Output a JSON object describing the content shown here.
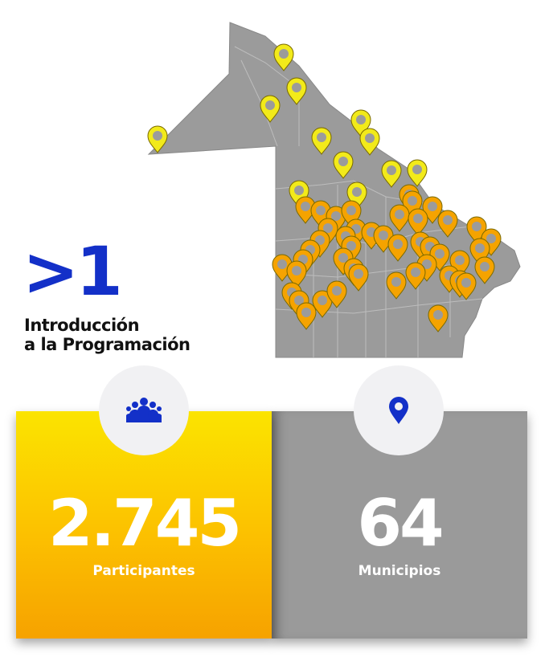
{
  "brand": {
    "mark": ">1"
  },
  "course": {
    "line1": "Introducción",
    "line2": "a la Programación"
  },
  "colors": {
    "brand_blue": "#1330c8",
    "map_gray": "#9b9b9b",
    "pin_yellow": "#f2ea1a",
    "pin_orange": "#f5a300",
    "card_yellow": "#fcc000",
    "card_gray": "#9a9a9a"
  },
  "stats": [
    {
      "value": "2.745",
      "label": "Participantes",
      "icon": "people-group-icon"
    },
    {
      "value": "64",
      "label": "Municipios",
      "icon": "location-pin-icon"
    }
  ],
  "map": {
    "icon": "province-map",
    "marker_icon": "location-pin-icon"
  }
}
